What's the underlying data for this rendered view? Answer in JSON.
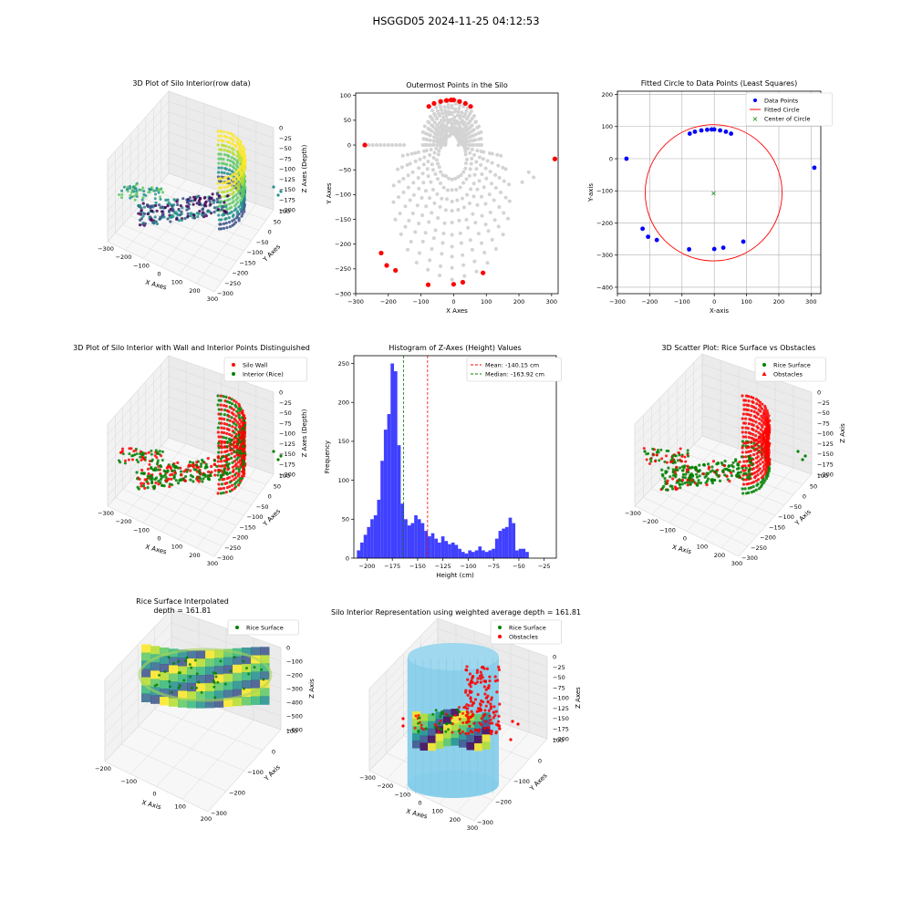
{
  "suptitle": "HSGGD05 2024-11-25 04:12:53",
  "colors": {
    "wall": "#ff0000",
    "rice": "#008000",
    "outer": "#d3d3d3",
    "blue": "#0000ff",
    "sky": "#87ceeb",
    "hist": "#4040ff",
    "pane": "#f2f2f2",
    "grid": "#d9d9d9"
  },
  "chart_data": [
    {
      "id": "p1",
      "type": "scatter3d",
      "title": "3D Plot of Silo Interior(row data)",
      "xlabel": "X Axes",
      "ylabel": "Y Axes",
      "zlabel": "Z Axes (Depth)",
      "x_ticks": [
        "−300",
        "−200",
        "−100",
        "0",
        "100",
        "200",
        "300"
      ],
      "y_ticks": [
        "100",
        "50",
        "0",
        "−50",
        "−100",
        "−150",
        "−200",
        "−250",
        "−300"
      ],
      "z_ticks": [
        "0",
        "−25",
        "−50",
        "−75",
        "−100",
        "−125",
        "−150",
        "−175",
        "−200"
      ]
    },
    {
      "id": "p2",
      "type": "scatter",
      "title": "Outermost Points in the Silo",
      "xlabel": "X Axes",
      "ylabel": "Y Axes",
      "xlim": [
        -300,
        320
      ],
      "ylim": [
        -300,
        105
      ],
      "x_ticks": [
        -300,
        -200,
        -100,
        0,
        100,
        200,
        300
      ],
      "y_ticks": [
        -300,
        -250,
        -200,
        -150,
        -100,
        -50,
        0,
        50,
        100
      ],
      "x_tick_labels": [
        "−300",
        "−200",
        "−100",
        "0",
        "100",
        "200",
        "300"
      ],
      "y_tick_labels": [
        "−300",
        "−250",
        "−200",
        "−150",
        "−100",
        "−50",
        "0",
        "50",
        "100"
      ],
      "outer_points": [
        [
          -272,
          0
        ],
        [
          -222,
          -218
        ],
        [
          -205,
          -243
        ],
        [
          -178,
          -253
        ],
        [
          -78,
          -282
        ],
        [
          -76,
          78
        ],
        [
          -60,
          84
        ],
        [
          -40,
          88
        ],
        [
          -22,
          90
        ],
        [
          -8,
          91
        ],
        [
          0,
          91
        ],
        [
          18,
          88
        ],
        [
          36,
          84
        ],
        [
          52,
          78
        ],
        [
          0,
          -281
        ],
        [
          28,
          -277
        ],
        [
          90,
          -258
        ],
        [
          310,
          -28
        ]
      ]
    },
    {
      "id": "p3",
      "type": "scatter",
      "title": "Fitted Circle to Data Points (Least Squares)",
      "xlabel": "X-axis",
      "ylabel": "Y-axis",
      "xlim": [
        -300,
        330
      ],
      "ylim": [
        -420,
        210
      ],
      "x_ticks": [
        -300,
        -200,
        -100,
        0,
        100,
        200,
        300
      ],
      "y_ticks": [
        -400,
        -300,
        -200,
        -100,
        0,
        100,
        200
      ],
      "x_tick_labels": [
        "−300",
        "−200",
        "−100",
        "0",
        "100",
        "200",
        "300"
      ],
      "y_tick_labels": [
        "−400",
        "−300",
        "−200",
        "−100",
        "0",
        "100",
        "200"
      ],
      "legend": [
        "Data Points",
        "Fitted Circle",
        "Center of Circle"
      ],
      "data_points": [
        [
          -272,
          0
        ],
        [
          -222,
          -218
        ],
        [
          -205,
          -243
        ],
        [
          -178,
          -253
        ],
        [
          -78,
          -282
        ],
        [
          -76,
          78
        ],
        [
          -60,
          84
        ],
        [
          -40,
          88
        ],
        [
          -22,
          90
        ],
        [
          -8,
          91
        ],
        [
          0,
          91
        ],
        [
          18,
          88
        ],
        [
          36,
          84
        ],
        [
          52,
          78
        ],
        [
          0,
          -281
        ],
        [
          28,
          -277
        ],
        [
          90,
          -258
        ],
        [
          310,
          -28
        ]
      ],
      "circle": {
        "cx": -2,
        "cy": -106,
        "r": 212
      }
    },
    {
      "id": "p4",
      "type": "scatter3d",
      "title": "3D Plot of Silo Interior with Wall and Interior Points Distinguished",
      "xlabel": "X Axes",
      "ylabel": "Y Axes",
      "zlabel": "Z Axes (Depth)",
      "legend": [
        "Silo Wall",
        "Interior (Rice)"
      ],
      "x_ticks": [
        "−300",
        "−200",
        "−100",
        "0",
        "100",
        "200",
        "300"
      ],
      "y_ticks": [
        "100",
        "50",
        "0",
        "−50",
        "−100",
        "−150",
        "−200",
        "−250",
        "−300"
      ],
      "z_ticks": [
        "0",
        "−25",
        "−50",
        "−75",
        "−100",
        "−125",
        "−150",
        "−175",
        "−200"
      ]
    },
    {
      "id": "p5",
      "type": "bar",
      "title": "Histogram of Z-Axes (Height) Values",
      "xlabel": "Height (cm)",
      "ylabel": "Frequency",
      "xlim": [
        -213,
        -13
      ],
      "ylim": [
        0,
        260
      ],
      "x_ticks": [
        -200,
        -175,
        -150,
        -125,
        -100,
        -75,
        -50,
        -25
      ],
      "y_ticks": [
        0,
        50,
        100,
        150,
        200,
        250
      ],
      "x_tick_labels": [
        "−200",
        "−175",
        "−150",
        "−125",
        "−100",
        "−75",
        "−50",
        "−25"
      ],
      "y_tick_labels": [
        "0",
        "50",
        "100",
        "150",
        "200",
        "250"
      ],
      "bin_start": -210,
      "bin_width": 3.33,
      "values": [
        10,
        20,
        30,
        40,
        50,
        55,
        75,
        125,
        165,
        185,
        250,
        240,
        145,
        70,
        50,
        42,
        45,
        55,
        50,
        45,
        35,
        28,
        32,
        25,
        20,
        28,
        22,
        18,
        20,
        17,
        12,
        8,
        6,
        10,
        8,
        10,
        15,
        10,
        8,
        10,
        12,
        25,
        35,
        38,
        40,
        52,
        45,
        10,
        12,
        12,
        8
      ],
      "mean": -140.15,
      "median": -163.92,
      "legend": [
        "Mean: -140.15 cm",
        "Median: -163.92 cm"
      ]
    },
    {
      "id": "p6",
      "type": "scatter3d",
      "title": "3D Scatter Plot: Rice Surface vs Obstacles",
      "xlabel": "X Axis",
      "ylabel": "Y Axis",
      "zlabel": "Z Axis",
      "legend": [
        "Rice Surface",
        "Obstacles"
      ],
      "x_ticks": [
        "−300",
        "−200",
        "−100",
        "0",
        "100",
        "200",
        "300"
      ],
      "y_ticks": [
        "100",
        "50",
        "0",
        "−50",
        "−100",
        "−150",
        "−200",
        "−250",
        "−300"
      ],
      "z_ticks": [
        "0",
        "−25",
        "−50",
        "−75",
        "−100",
        "−125",
        "−150",
        "−175",
        "−200"
      ]
    },
    {
      "id": "p7",
      "type": "surface3d",
      "title_lines": [
        "Rice Surface Interpolated",
        "depth = 161.81"
      ],
      "xlabel": "X Axis",
      "ylabel": "Y Axis",
      "zlabel": "Z Axis",
      "legend": [
        "Rice Surface"
      ],
      "x_ticks": [
        "−200",
        "−100",
        "0",
        "100",
        "200"
      ],
      "y_ticks": [
        "100",
        "0",
        "−100",
        "−200",
        "−300"
      ],
      "z_ticks": [
        "0",
        "−100",
        "−200",
        "−300",
        "−400",
        "−500",
        "−600"
      ]
    },
    {
      "id": "p8",
      "type": "surface3d",
      "title": "Silo Interior Representation using weighted average depth = 161.81",
      "xlabel": "X Axes",
      "ylabel": "Y Axes",
      "zlabel": "Z Axes",
      "legend": [
        "Rice Surface",
        "Obstacles"
      ],
      "x_ticks": [
        "−300",
        "−200",
        "−100",
        "0",
        "100",
        "200",
        "300"
      ],
      "y_ticks": [
        "100",
        "0",
        "−100",
        "−200",
        "−300"
      ],
      "z_ticks": [
        "0",
        "−25",
        "−50",
        "−75",
        "−100",
        "−125",
        "−150",
        "−175",
        "−200"
      ]
    }
  ]
}
